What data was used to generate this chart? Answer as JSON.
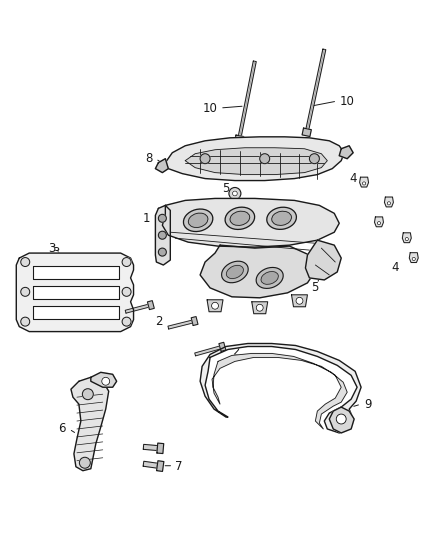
{
  "background_color": "#ffffff",
  "line_color": "#1a1a1a",
  "label_color": "#1a1a1a",
  "fig_width": 4.38,
  "fig_height": 5.33,
  "dpi": 100,
  "lw_main": 1.0,
  "lw_thin": 0.6,
  "lw_thick": 1.4,
  "font_size": 8.5
}
